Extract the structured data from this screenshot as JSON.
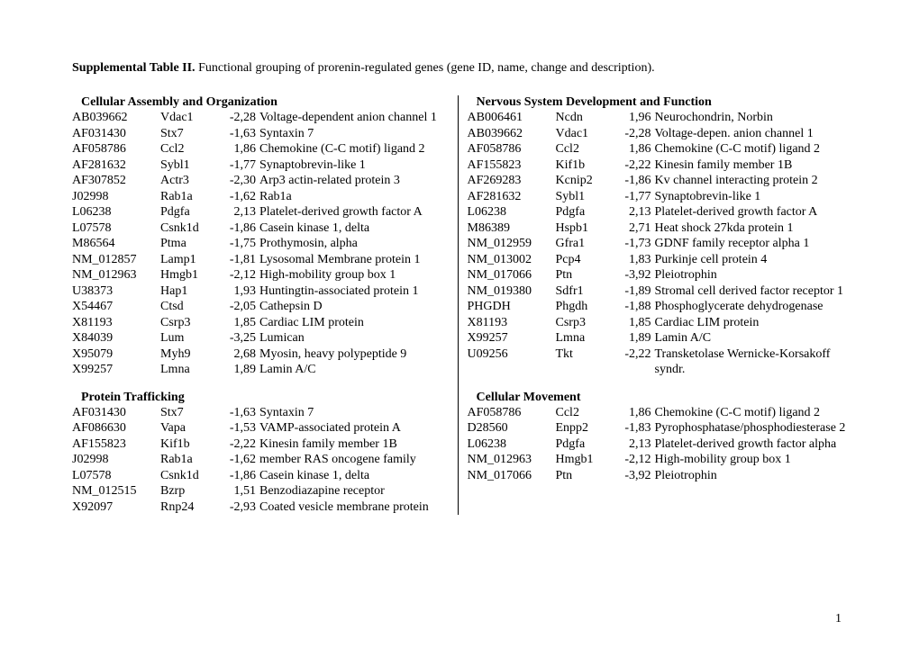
{
  "title_bold": "Supplemental Table II.",
  "title_rest": " Functional grouping of prorenin-regulated genes (gene ID, name, change and description).",
  "page_number": "1",
  "left": {
    "section1": {
      "header": "Cellular Assembly and Organization",
      "rows": [
        {
          "id": "AB039662",
          "name": "Vdac1",
          "chg": "-2,28",
          "desc": "Voltage-dependent anion channel 1"
        },
        {
          "id": "AF031430",
          "name": "Stx7",
          "chg": "-1,63",
          "desc": "Syntaxin 7"
        },
        {
          "id": "AF058786",
          "name": "Ccl2",
          "chg": "1,86",
          "desc": "Chemokine (C-C motif) ligand 2"
        },
        {
          "id": "AF281632",
          "name": "Sybl1",
          "chg": "-1,77",
          "desc": "Synaptobrevin-like 1"
        },
        {
          "id": "AF307852",
          "name": "Actr3",
          "chg": "-2,30",
          "desc": "Arp3 actin-related protein 3"
        },
        {
          "id": "J02998",
          "name": "Rab1a",
          "chg": "-1,62",
          "desc": "Rab1a"
        },
        {
          "id": "L06238",
          "name": "Pdgfa",
          "chg": "2,13",
          "desc": "Platelet-derived growth factor A"
        },
        {
          "id": "L07578",
          "name": "Csnk1d",
          "chg": "-1,86",
          "desc": "Casein kinase 1, delta"
        },
        {
          "id": "M86564",
          "name": "Ptma",
          "chg": "-1,75",
          "desc": "Prothymosin, alpha"
        },
        {
          "id": "NM_012857",
          "name": "Lamp1",
          "chg": "-1,81",
          "desc": "Lysosomal Membrane protein 1"
        },
        {
          "id": "NM_012963",
          "name": "Hmgb1",
          "chg": "-2,12",
          "desc": "High-mobility group box 1"
        },
        {
          "id": "U38373",
          "name": "Hap1",
          "chg": "1,93",
          "desc": "Huntingtin-associated protein 1"
        },
        {
          "id": "X54467",
          "name": "Ctsd",
          "chg": "-2,05",
          "desc": "Cathepsin D"
        },
        {
          "id": "X81193",
          "name": "Csrp3",
          "chg": "1,85",
          "desc": "Cardiac LIM protein"
        },
        {
          "id": "X84039",
          "name": "Lum",
          "chg": "-3,25",
          "desc": "Lumican"
        },
        {
          "id": "X95079",
          "name": "Myh9",
          "chg": "2,68",
          "desc": "Myosin, heavy polypeptide 9"
        },
        {
          "id": "X99257",
          "name": "Lmna",
          "chg": "1,89",
          "desc": "Lamin A/C"
        }
      ]
    },
    "section2": {
      "header": "Protein Trafficking",
      "rows": [
        {
          "id": "AF031430",
          "name": "Stx7",
          "chg": "-1,63",
          "desc": "Syntaxin 7"
        },
        {
          "id": "AF086630",
          "name": "Vapa",
          "chg": "-1,53",
          "desc": "VAMP-associated protein A"
        },
        {
          "id": "AF155823",
          "name": "Kif1b",
          "chg": "-2,22",
          "desc": "Kinesin family member 1B"
        },
        {
          "id": "J02998",
          "name": "Rab1a",
          "chg": "-1,62",
          "desc": "member RAS oncogene family"
        },
        {
          "id": "L07578",
          "name": "Csnk1d",
          "chg": "-1,86",
          "desc": "Casein kinase 1, delta"
        },
        {
          "id": "NM_012515",
          "name": "Bzrp",
          "chg": "1,51",
          "desc": "Benzodiazapine receptor"
        },
        {
          "id": "X92097",
          "name": "Rnp24",
          "chg": "-2,93",
          "desc": "Coated vesicle membrane protein"
        }
      ]
    }
  },
  "right": {
    "section1": {
      "header": "Nervous System Development and Function",
      "rows": [
        {
          "id": "AB006461",
          "name": "Ncdn",
          "chg": "1,96",
          "desc": "Neurochondrin, Norbin"
        },
        {
          "id": "AB039662",
          "name": "Vdac1",
          "chg": "-2,28",
          "desc": "Voltage-depen. anion channel 1"
        },
        {
          "id": "AF058786",
          "name": "Ccl2",
          "chg": "1,86",
          "desc": "Chemokine (C-C motif) ligand 2"
        },
        {
          "id": "AF155823",
          "name": "Kif1b",
          "chg": "-2,22",
          "desc": "Kinesin family member 1B"
        },
        {
          "id": "AF269283",
          "name": "Kcnip2",
          "chg": "-1,86",
          "desc": "Kv channel interacting protein 2"
        },
        {
          "id": "AF281632",
          "name": "Sybl1",
          "chg": "-1,77",
          "desc": "Synaptobrevin-like 1"
        },
        {
          "id": "L06238",
          "name": "Pdgfa",
          "chg": "2,13",
          "desc": "Platelet-derived growth factor A"
        },
        {
          "id": "M86389",
          "name": "Hspb1",
          "chg": "2,71",
          "desc": "Heat shock 27kda protein 1"
        },
        {
          "id": "NM_012959",
          "name": "Gfra1",
          "chg": "-1,73",
          "desc": "GDNF family receptor alpha 1"
        },
        {
          "id": "NM_013002",
          "name": "Pcp4",
          "chg": "1,83",
          "desc": "Purkinje cell protein 4"
        },
        {
          "id": "NM_017066",
          "name": "Ptn",
          "chg": "-3,92",
          "desc": "Pleiotrophin"
        },
        {
          "id": "NM_019380",
          "name": "Sdfr1",
          "chg": "-1,89",
          "desc": "Stromal cell derived factor receptor 1"
        },
        {
          "id": "PHGDH",
          "name": "Phgdh",
          "chg": "-1,88",
          "desc": "Phosphoglycerate dehydrogenase"
        },
        {
          "id": "X81193",
          "name": "Csrp3",
          "chg": "1,85",
          "desc": "Cardiac LIM protein"
        },
        {
          "id": "X99257",
          "name": "Lmna",
          "chg": "1,89",
          "desc": "Lamin A/C"
        },
        {
          "id": "U09256",
          "name": "Tkt",
          "chg": "-2,22",
          "desc": "Transketolase Wernicke-Korsakoff syndr."
        }
      ]
    },
    "section2": {
      "header": "Cellular Movement",
      "rows": [
        {
          "id": "AF058786",
          "name": "Ccl2",
          "chg": "1,86",
          "desc": "Chemokine (C-C motif) ligand 2"
        },
        {
          "id": "D28560",
          "name": "Enpp2",
          "chg": "-1,83",
          "desc": "Pyrophosphatase/phosphodiesterase 2"
        },
        {
          "id": "L06238",
          "name": "Pdgfa",
          "chg": "2,13",
          "desc": "Platelet-derived growth factor alpha"
        },
        {
          "id": "NM_012963",
          "name": "Hmgb1",
          "chg": "-2,12",
          "desc": "High-mobility group box 1"
        },
        {
          "id": "NM_017066",
          "name": "Ptn",
          "chg": "-3,92",
          "desc": "Pleiotrophin"
        }
      ]
    }
  }
}
